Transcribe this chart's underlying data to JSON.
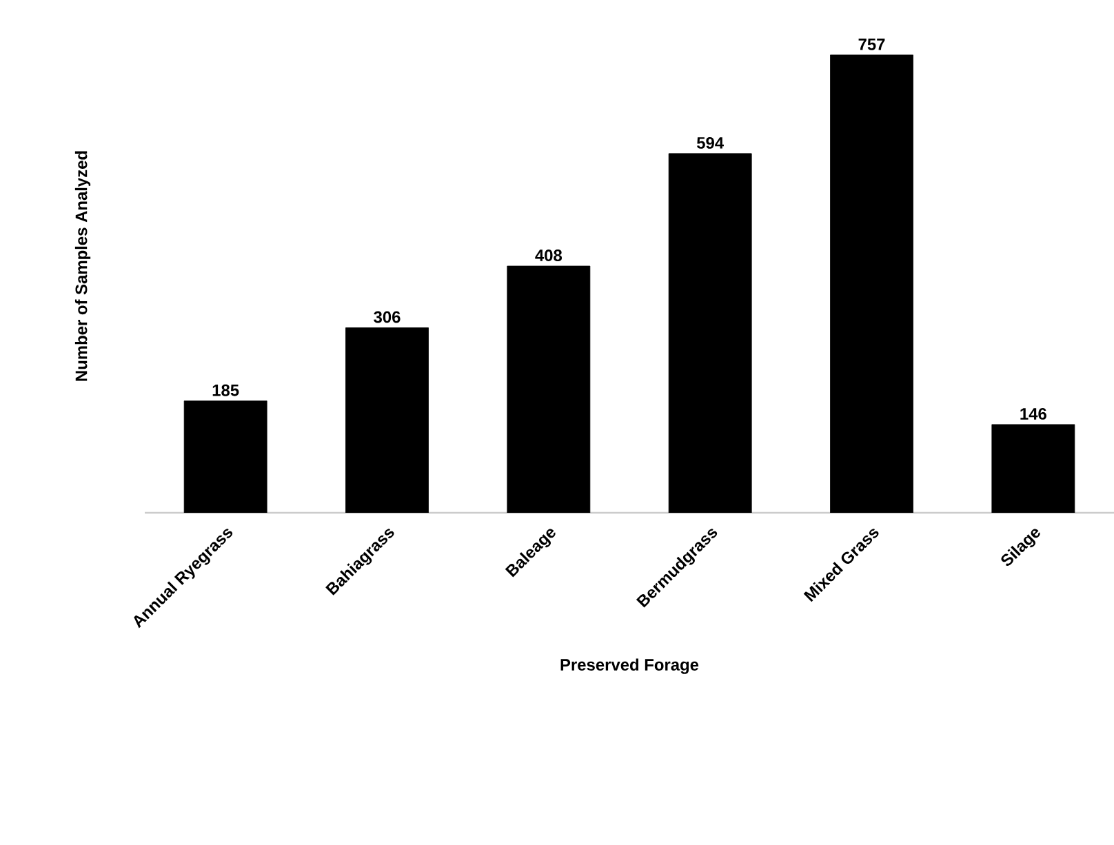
{
  "chart_data": {
    "type": "bar",
    "xlabel": "Preserved Forage",
    "ylabel": "Number of Samples Analyzed",
    "categories": [
      "Annual Ryegrass",
      "Bahiagrass",
      "Baleage",
      "Bermudgrass",
      "Mixed Grass",
      "Silage"
    ],
    "values": [
      185,
      306,
      408,
      594,
      757,
      146
    ],
    "color": "#000000",
    "data_labels": true,
    "tick_labels": "x"
  }
}
